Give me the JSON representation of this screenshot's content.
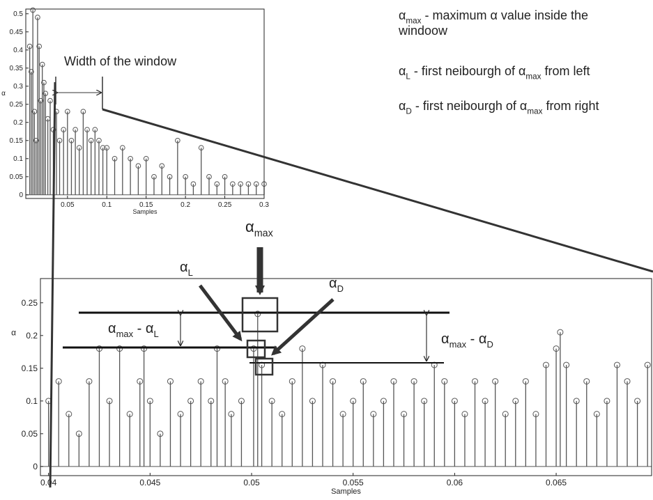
{
  "chart_data": [
    {
      "type": "stem",
      "xlabel": "Samples",
      "ylabel": "α",
      "color": "#555555",
      "x": [
        0.002,
        0.004,
        0.006,
        0.008,
        0.01,
        0.012,
        0.014,
        0.016,
        0.018,
        0.02,
        0.022,
        0.025,
        0.028,
        0.032,
        0.036,
        0.04,
        0.045,
        0.05,
        0.055,
        0.06,
        0.065,
        0.07,
        0.075,
        0.08,
        0.085,
        0.09,
        0.095,
        0.1,
        0.11,
        0.12,
        0.13,
        0.14,
        0.15,
        0.16,
        0.17,
        0.18,
        0.19,
        0.2,
        0.21,
        0.22,
        0.23,
        0.24,
        0.25,
        0.26,
        0.27,
        0.28,
        0.29,
        0.3
      ],
      "values": [
        0.41,
        0.34,
        0.51,
        0.23,
        0.15,
        0.49,
        0.41,
        0.26,
        0.36,
        0.31,
        0.28,
        0.21,
        0.26,
        0.18,
        0.23,
        0.15,
        0.18,
        0.23,
        0.15,
        0.18,
        0.13,
        0.23,
        0.18,
        0.15,
        0.18,
        0.15,
        0.13,
        0.13,
        0.1,
        0.13,
        0.1,
        0.08,
        0.1,
        0.05,
        0.08,
        0.05,
        0.15,
        0.05,
        0.03,
        0.13,
        0.05,
        0.03,
        0.05,
        0.03,
        0.03,
        0.03,
        0.03,
        0.03
      ],
      "xlim": [
        -0.003,
        0.3
      ],
      "ylim": [
        -0.01,
        0.513
      ],
      "xticks": [
        0.05,
        0.1,
        0.15,
        0.2,
        0.25,
        0.3
      ],
      "yticks": [
        0,
        0.05,
        0.1,
        0.15,
        0.2,
        0.25,
        0.3,
        0.35,
        0.4,
        0.45,
        0.5
      ]
    },
    {
      "type": "stem",
      "xlabel": "Samples",
      "ylabel": "α",
      "color": "#555555",
      "x": [
        0.04,
        0.0405,
        0.041,
        0.0415,
        0.042,
        0.0425,
        0.043,
        0.0435,
        0.044,
        0.0445,
        0.0447,
        0.045,
        0.0455,
        0.046,
        0.0465,
        0.047,
        0.0475,
        0.048,
        0.0483,
        0.0487,
        0.049,
        0.0495,
        0.0501,
        0.0503,
        0.0505,
        0.051,
        0.0515,
        0.052,
        0.0525,
        0.053,
        0.0535,
        0.054,
        0.0545,
        0.055,
        0.0555,
        0.056,
        0.0565,
        0.057,
        0.0575,
        0.058,
        0.0585,
        0.059,
        0.0595,
        0.06,
        0.0605,
        0.061,
        0.0615,
        0.062,
        0.0625,
        0.063,
        0.0635,
        0.064,
        0.0645,
        0.065,
        0.0652,
        0.0655,
        0.066,
        0.0665,
        0.067,
        0.0675,
        0.068,
        0.0685,
        0.069,
        0.0695
      ],
      "values": [
        0.1,
        0.13,
        0.08,
        0.05,
        0.13,
        0.18,
        0.1,
        0.18,
        0.08,
        0.13,
        0.18,
        0.1,
        0.05,
        0.13,
        0.08,
        0.1,
        0.13,
        0.1,
        0.18,
        0.13,
        0.08,
        0.1,
        0.18,
        0.233,
        0.155,
        0.1,
        0.08,
        0.13,
        0.18,
        0.1,
        0.155,
        0.13,
        0.08,
        0.1,
        0.13,
        0.08,
        0.1,
        0.13,
        0.08,
        0.13,
        0.1,
        0.155,
        0.13,
        0.1,
        0.08,
        0.13,
        0.1,
        0.13,
        0.08,
        0.1,
        0.13,
        0.08,
        0.155,
        0.18,
        0.205,
        0.155,
        0.1,
        0.13,
        0.08,
        0.1,
        0.155,
        0.13,
        0.1,
        0.155
      ],
      "xlim": [
        0.0396,
        0.0697
      ],
      "ylim": [
        -0.014,
        0.287
      ],
      "xticks": [
        0.04,
        0.045,
        0.05,
        0.055,
        0.06,
        0.065
      ],
      "yticks": [
        0,
        0.05,
        0.1,
        0.15,
        0.2,
        0.25
      ]
    }
  ],
  "annotations": {
    "window": "Width of the window",
    "notes": [
      [
        {
          "text": "α"
        },
        {
          "sub": "max"
        },
        {
          "text": " - maximum α value inside the"
        }
      ],
      [
        {
          "text": "windoow"
        }
      ],
      [
        {
          "text": "α"
        },
        {
          "sub": "L"
        },
        {
          "text": " - first neibourgh of α"
        },
        {
          "sub": "max"
        },
        {
          "text": " from left"
        }
      ],
      [
        {
          "text": "α"
        },
        {
          "sub": "D"
        },
        {
          "text": " - first neibourgh of α"
        },
        {
          "sub": "max"
        },
        {
          "text": " from right"
        }
      ]
    ],
    "alpha_max": [
      {
        "text": "α"
      },
      {
        "sub": "max"
      }
    ],
    "alpha_l": [
      {
        "text": "α"
      },
      {
        "sub": "L"
      }
    ],
    "alpha_d": [
      {
        "text": "α"
      },
      {
        "sub": "D"
      }
    ],
    "diff_l": [
      {
        "text": "α"
      },
      {
        "sub": "max"
      },
      {
        "text": " - α"
      },
      {
        "sub": "L"
      }
    ],
    "diff_d": [
      {
        "text": "α"
      },
      {
        "sub": "max"
      },
      {
        "text": " - α"
      },
      {
        "sub": "D"
      }
    ]
  }
}
